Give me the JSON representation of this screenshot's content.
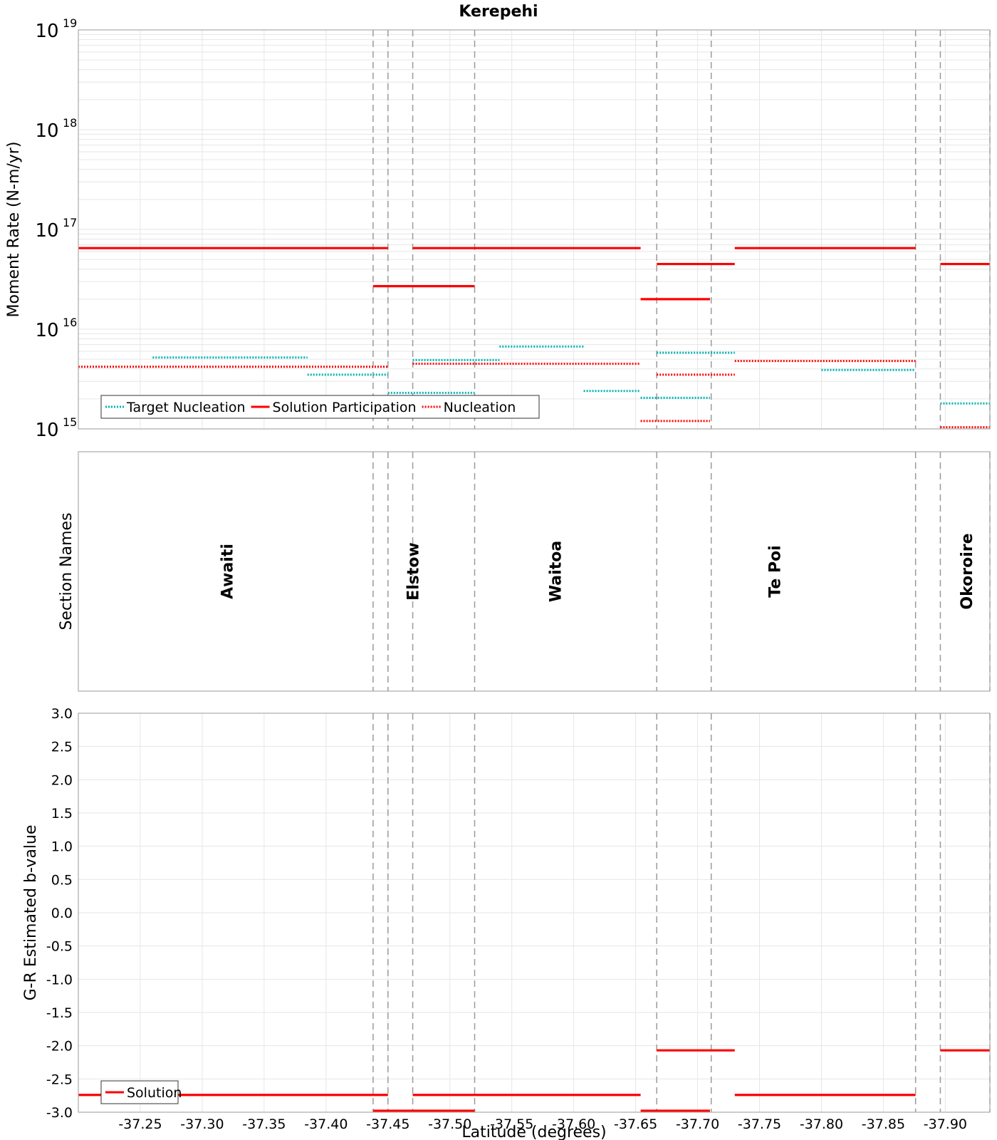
{
  "chart_data": [
    {
      "type": "line",
      "panel": "moment-rate",
      "title": "Kerepehi",
      "xlabel": "",
      "ylabel": "Moment Rate (N-m/yr)",
      "yscale": "log",
      "ylim_exp": [
        15,
        19
      ],
      "ytick_exps": [
        15,
        16,
        17,
        18,
        19
      ],
      "legend": {
        "placement": "bottom-left",
        "entries": [
          "Target Nucleation",
          "Solution Participation",
          "Nucleation"
        ]
      },
      "series": [
        {
          "name": "Target Nucleation",
          "color": "#00b4b4",
          "style": "dotted",
          "segments": [
            {
              "x": [
                -37.26,
                -37.385
              ],
              "y": 5200000000000000.0
            },
            {
              "x": [
                -37.385,
                -37.45
              ],
              "y": 3500000000000000.0
            },
            {
              "x": [
                -37.45,
                -37.52
              ],
              "y": 2300000000000000.0
            },
            {
              "x": [
                -37.47,
                -37.54
              ],
              "y": 4900000000000000.0
            },
            {
              "x": [
                -37.54,
                -37.608
              ],
              "y": 6700000000000000.0
            },
            {
              "x": [
                -37.608,
                -37.654
              ],
              "y": 2400000000000000.0
            },
            {
              "x": [
                -37.654,
                -37.71
              ],
              "y": 2050000000000000.0
            },
            {
              "x": [
                -37.667,
                -37.73
              ],
              "y": 5800000000000000.0
            },
            {
              "x": [
                -37.8,
                -37.876
              ],
              "y": 3900000000000000.0
            },
            {
              "x": [
                -37.896,
                -37.936
              ],
              "y": 1800000000000000.0
            }
          ]
        },
        {
          "name": "Solution Participation",
          "color": "#ff0000",
          "style": "solid",
          "segments": [
            {
              "x": [
                -37.2,
                -37.45
              ],
              "y": 6.5e+16
            },
            {
              "x": [
                -37.438,
                -37.52
              ],
              "y": 2.7e+16
            },
            {
              "x": [
                -37.47,
                -37.654
              ],
              "y": 6.5e+16
            },
            {
              "x": [
                -37.667,
                -37.73
              ],
              "y": 4.5e+16
            },
            {
              "x": [
                -37.654,
                -37.71
              ],
              "y": 2e+16
            },
            {
              "x": [
                -37.73,
                -37.876
              ],
              "y": 6.5e+16
            },
            {
              "x": [
                -37.896,
                -37.936
              ],
              "y": 4.5e+16
            }
          ]
        },
        {
          "name": "Nucleation",
          "color": "#ff0000",
          "style": "dotted",
          "segments": [
            {
              "x": [
                -37.2,
                -37.45
              ],
              "y": 4200000000000000.0
            },
            {
              "x": [
                -37.47,
                -37.654
              ],
              "y": 4500000000000000.0
            },
            {
              "x": [
                -37.654,
                -37.71
              ],
              "y": 1200000000000000.0
            },
            {
              "x": [
                -37.667,
                -37.73
              ],
              "y": 3500000000000000.0
            },
            {
              "x": [
                -37.73,
                -37.876
              ],
              "y": 4800000000000000.0
            },
            {
              "x": [
                -37.896,
                -37.936
              ],
              "y": 1040000000000000.0
            }
          ]
        }
      ]
    },
    {
      "type": "table",
      "panel": "section-names",
      "ylabel": "Section Names",
      "sections": [
        {
          "name": "Awaiti",
          "x": -37.32
        },
        {
          "name": "Elstow",
          "x": -37.47
        },
        {
          "name": "Waitoa",
          "x": -37.585
        },
        {
          "name": "Te Poi",
          "x": -37.762
        },
        {
          "name": "Okoroire",
          "x": -37.917
        }
      ]
    },
    {
      "type": "line",
      "panel": "b-value",
      "xlabel": "Latitude (degrees)",
      "ylabel": "G-R Estimated b-value",
      "ylim": [
        -3.0,
        3.0
      ],
      "yticks": [
        "3.0",
        "2.5",
        "2.0",
        "1.5",
        "1.0",
        "0.5",
        "0.0",
        "-0.5",
        "-1.0",
        "-1.5",
        "-2.0",
        "-2.5",
        "-3.0"
      ],
      "legend": {
        "placement": "bottom-left",
        "entries": [
          "Solution"
        ]
      },
      "series": [
        {
          "name": "Solution",
          "color": "#ff0000",
          "style": "solid",
          "segments": [
            {
              "x": [
                -37.2,
                -37.45
              ],
              "y": -2.74
            },
            {
              "x": [
                -37.438,
                -37.52
              ],
              "y": -3.0
            },
            {
              "x": [
                -37.47,
                -37.654
              ],
              "y": -2.74
            },
            {
              "x": [
                -37.654,
                -37.71
              ],
              "y": -3.0
            },
            {
              "x": [
                -37.667,
                -37.73
              ],
              "y": -2.07
            },
            {
              "x": [
                -37.73,
                -37.876
              ],
              "y": -2.74
            },
            {
              "x": [
                -37.896,
                -37.936
              ],
              "y": -2.07
            }
          ]
        }
      ]
    }
  ],
  "shared_x": {
    "xlim": [
      -37.2,
      -37.936
    ],
    "xticks": [
      {
        "v": -37.25,
        "label": "-37.25"
      },
      {
        "v": -37.3,
        "label": "-37.30"
      },
      {
        "v": -37.35,
        "label": "-37.35"
      },
      {
        "v": -37.4,
        "label": "-37.40"
      },
      {
        "v": -37.45,
        "label": "-37.45"
      },
      {
        "v": -37.5,
        "label": "-37.50"
      },
      {
        "v": -37.55,
        "label": "-37.55"
      },
      {
        "v": -37.6,
        "label": "-37.60"
      },
      {
        "v": -37.65,
        "label": "-37.65"
      },
      {
        "v": -37.7,
        "label": "-37.70"
      },
      {
        "v": -37.75,
        "label": "-37.75"
      },
      {
        "v": -37.8,
        "label": "-37.80"
      },
      {
        "v": -37.85,
        "label": "-37.85"
      },
      {
        "v": -37.9,
        "label": "-37.90"
      }
    ],
    "section_boundaries": [
      -37.438,
      -37.45,
      -37.47,
      -37.52,
      -37.667,
      -37.711,
      -37.876,
      -37.896,
      -37.936
    ]
  },
  "colors": {
    "target": "#00b4b4",
    "solution": "#ff0000",
    "grid": "#e6e6e6",
    "boundary": "#9a9a9a",
    "frame": "#aaaaaa"
  }
}
